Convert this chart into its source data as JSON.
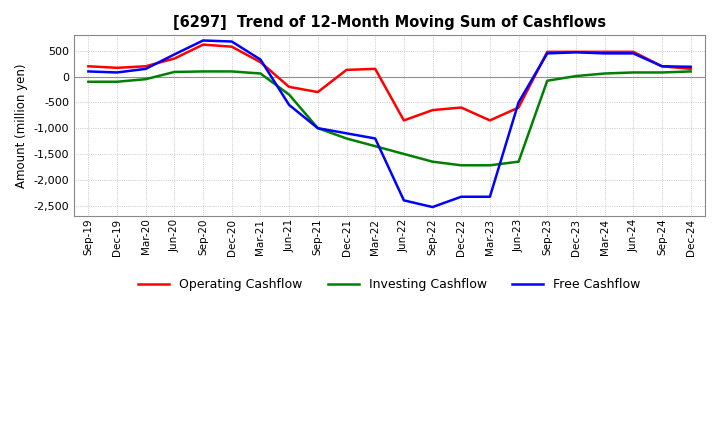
{
  "title": "[6297]  Trend of 12-Month Moving Sum of Cashflows",
  "ylabel": "Amount (million yen)",
  "ylim": [
    -2700,
    800
  ],
  "yticks": [
    500,
    0,
    -500,
    -1000,
    -1500,
    -2000,
    -2500
  ],
  "x_labels": [
    "Sep-19",
    "Dec-19",
    "Mar-20",
    "Jun-20",
    "Sep-20",
    "Dec-20",
    "Mar-21",
    "Jun-21",
    "Sep-21",
    "Dec-21",
    "Mar-22",
    "Jun-22",
    "Sep-22",
    "Dec-22",
    "Mar-23",
    "Jun-23",
    "Sep-23",
    "Dec-23",
    "Mar-24",
    "Jun-24",
    "Sep-24",
    "Dec-24"
  ],
  "operating": [
    200,
    170,
    200,
    350,
    620,
    580,
    280,
    -200,
    -300,
    130,
    150,
    -850,
    -650,
    -600,
    -850,
    -600,
    480,
    480,
    480,
    480,
    200,
    150
  ],
  "investing": [
    -100,
    -100,
    -50,
    90,
    100,
    100,
    60,
    -350,
    -1000,
    -1200,
    -1350,
    -1500,
    -1650,
    -1720,
    -1720,
    -1650,
    -80,
    10,
    60,
    80,
    80,
    100
  ],
  "free": [
    100,
    80,
    150,
    430,
    700,
    680,
    330,
    -550,
    -1000,
    -1100,
    -1200,
    -2400,
    -2530,
    -2330,
    -2330,
    -500,
    450,
    470,
    450,
    450,
    200,
    190
  ],
  "op_color": "#ff0000",
  "inv_color": "#008000",
  "free_color": "#0000ff",
  "grid_color": "#aaaaaa",
  "bg_color": "#ffffff"
}
